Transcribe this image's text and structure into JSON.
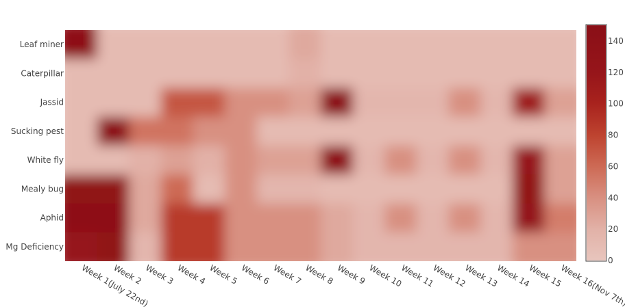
{
  "chart_data": {
    "type": "heatmap",
    "title": "",
    "xlabel": "",
    "ylabel": "",
    "x": [
      "Week 1(July 22nd)",
      "Week 2",
      "Week 3",
      "Week 4",
      "Week 5",
      "Week 6",
      "Week 7",
      "Week 8",
      "Week 9",
      "Week 10",
      "Week 11",
      "Week 12",
      "Week 13",
      "Week 14",
      "Week 15",
      "Week 16(Nov 7th)"
    ],
    "y": [
      "Leaf miner",
      "Caterpillar",
      "Jassid",
      "Sucking pest",
      "White fly",
      "Mealy bug",
      "Aphid",
      "Mg Deficiency"
    ],
    "z": [
      [
        140,
        10,
        10,
        10,
        10,
        10,
        10,
        25,
        10,
        10,
        10,
        10,
        10,
        10,
        10,
        10
      ],
      [
        10,
        10,
        10,
        10,
        10,
        10,
        10,
        20,
        10,
        10,
        10,
        10,
        10,
        10,
        10,
        10
      ],
      [
        10,
        10,
        10,
        70,
        70,
        40,
        40,
        30,
        145,
        15,
        15,
        15,
        40,
        15,
        110,
        30
      ],
      [
        10,
        145,
        55,
        55,
        40,
        40,
        10,
        10,
        10,
        10,
        10,
        10,
        10,
        10,
        10,
        10
      ],
      [
        10,
        10,
        20,
        30,
        20,
        40,
        30,
        30,
        140,
        15,
        40,
        15,
        40,
        15,
        120,
        30
      ],
      [
        135,
        135,
        25,
        60,
        10,
        40,
        15,
        15,
        10,
        10,
        10,
        10,
        10,
        10,
        130,
        30
      ],
      [
        140,
        140,
        25,
        85,
        85,
        40,
        40,
        40,
        25,
        15,
        40,
        15,
        40,
        15,
        125,
        50
      ],
      [
        120,
        135,
        15,
        85,
        85,
        40,
        40,
        40,
        25,
        15,
        15,
        15,
        15,
        15,
        40,
        40
      ]
    ],
    "zlim": [
      0,
      150
    ],
    "colorscale": [
      [
        0,
        "#e8c5bd"
      ],
      [
        0.13,
        "#e2b2a8"
      ],
      [
        0.27,
        "#d88f80"
      ],
      [
        0.4,
        "#cd6a55"
      ],
      [
        0.53,
        "#be4430"
      ],
      [
        0.67,
        "#a8221d"
      ],
      [
        0.8,
        "#96151a"
      ],
      [
        1,
        "#8a0f17"
      ]
    ],
    "colorbar_ticks": [
      0,
      20,
      40,
      60,
      80,
      100,
      120,
      140
    ]
  }
}
